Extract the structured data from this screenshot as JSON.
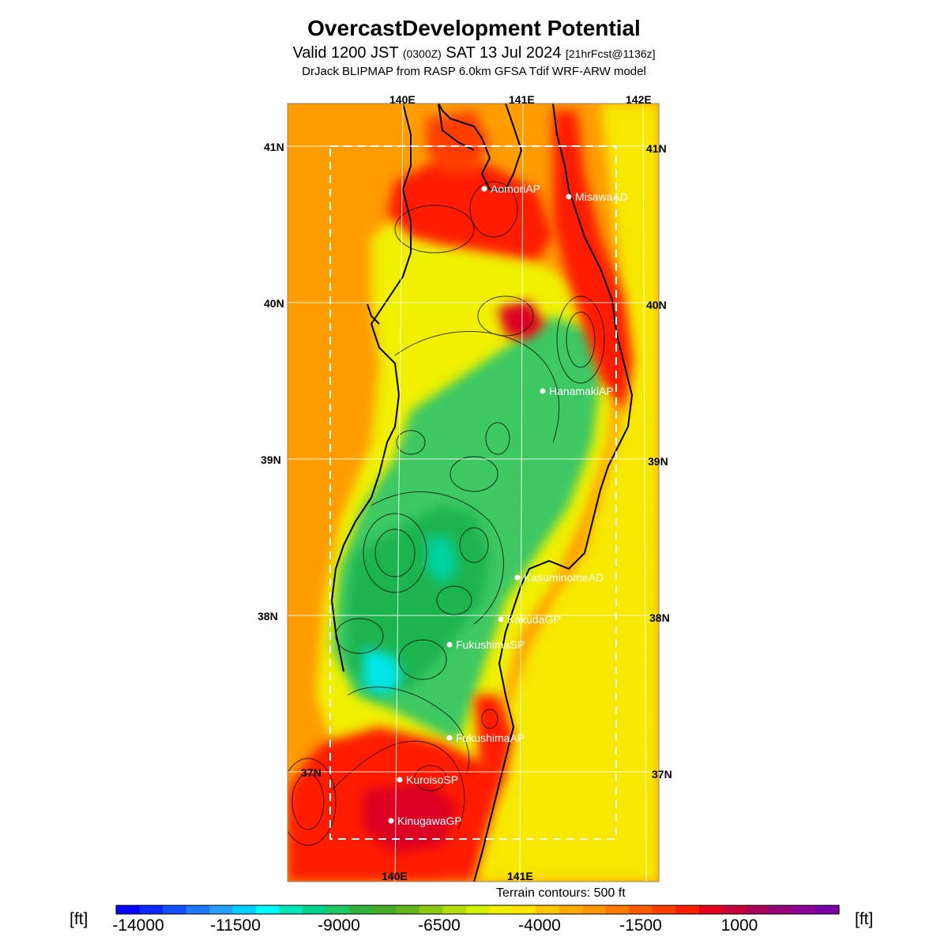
{
  "header": {
    "title": "OvercastDevelopment Potential",
    "valid_prefix": "Valid 1200 JST ",
    "valid_utc": "(0300Z)",
    "valid_date": " SAT 13 Jul 2024 ",
    "forecast_info": "[21hrFcst@1136z]",
    "model": "DrJack BLIPMAP from RASP 6.0km GFSA Tdif WRF-ARW model"
  },
  "map": {
    "lon_labels": [
      "140E",
      "141E",
      "142E"
    ],
    "lat_labels": [
      "41N",
      "40N",
      "39N",
      "38N",
      "37N"
    ],
    "stations": [
      {
        "name": "AomoriAP"
      },
      {
        "name": "MisawaAD"
      },
      {
        "name": "HanamakiAP"
      },
      {
        "name": "KasuminomeAD"
      },
      {
        "name": "KakudaGP"
      },
      {
        "name": "FukushimaSP"
      },
      {
        "name": "FukushimaAP"
      },
      {
        "name": "KuroisoSP"
      },
      {
        "name": "KinugawaGP"
      }
    ],
    "terrain_note": "Terrain contours: 500 ft"
  },
  "colorbar": {
    "unit_label": "[ft]",
    "ticks": [
      "-14000",
      "-11500",
      "-9000",
      "-6500",
      "-4000",
      "-1500",
      "1000"
    ],
    "colors": [
      "#0000ff",
      "#0a28ff",
      "#1450ff",
      "#1e78ff",
      "#28a0ff",
      "#00d2ff",
      "#00fafa",
      "#00e6b4",
      "#00d28c",
      "#1ec864",
      "#32b43c",
      "#46aa28",
      "#64b41e",
      "#8cc814",
      "#b4dc0a",
      "#d2f000",
      "#f0f000",
      "#ffe600",
      "#ffc800",
      "#ffaa00",
      "#ff9600",
      "#ff7800",
      "#ff5a00",
      "#ff3c00",
      "#ff1e00",
      "#e6001e",
      "#c8003c",
      "#aa005a",
      "#960078",
      "#8c0096",
      "#7800aa"
    ]
  },
  "palette": {
    "sea_orange": "#ff9c00",
    "inland_yellow": "#f0f000",
    "green_mid": "#3cc864",
    "green_dark": "#1eb450",
    "teal": "#00d2a0",
    "cyan": "#00e6e6",
    "red": "#ff1e00",
    "crimson": "#dc0023"
  }
}
